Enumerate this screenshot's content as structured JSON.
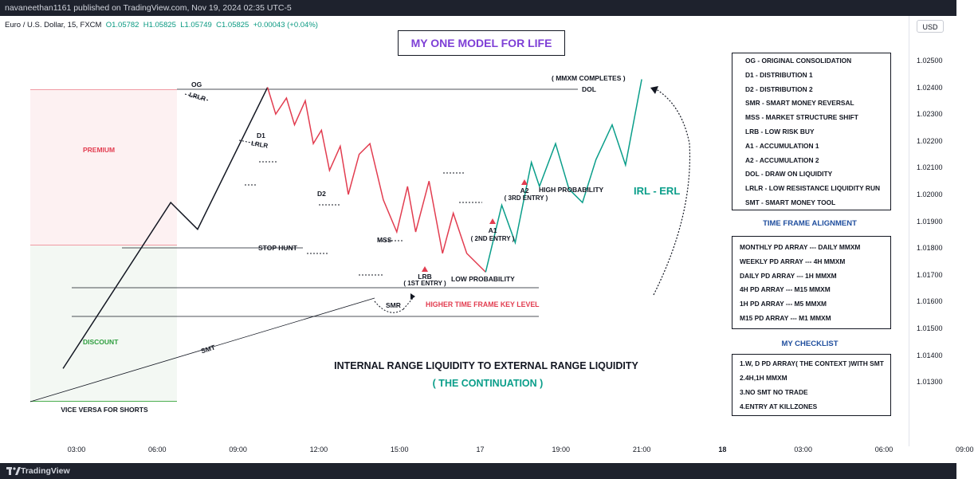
{
  "header": {
    "published": "navaneethan1161 published on TradingView.com, Nov 19, 2024 02:35 UTC-5",
    "symbol": "Euro / U.S. Dollar, 15, FXCM",
    "ohlc": {
      "o": "O1.05782",
      "h": "H1.05825",
      "l": "L1.05749",
      "c": "C1.05825",
      "change": "+0.00043 (+0.04%)"
    },
    "currency": "USD"
  },
  "footer": {
    "brand": "TradingView"
  },
  "title": "MY ONE MODEL FOR LIFE",
  "chart_data": {
    "type": "line",
    "yticks": [
      "1.02500",
      "1.02400",
      "1.02300",
      "1.02200",
      "1.02100",
      "1.02000",
      "1.01900",
      "1.01800",
      "1.01700",
      "1.01600",
      "1.01500",
      "1.01400",
      "1.01300"
    ],
    "xticks": [
      {
        "label": "03:00",
        "bold": false
      },
      {
        "label": "06:00",
        "bold": false
      },
      {
        "label": "09:00",
        "bold": false
      },
      {
        "label": "12:00",
        "bold": false
      },
      {
        "label": "15:00",
        "bold": false
      },
      {
        "label": "17",
        "bold": false
      },
      {
        "label": "19:00",
        "bold": false
      },
      {
        "label": "21:00",
        "bold": false
      },
      {
        "label": "18",
        "bold": true
      },
      {
        "label": "03:00",
        "bold": false
      },
      {
        "label": "06:00",
        "bold": false
      },
      {
        "label": "09:00",
        "bold": false
      }
    ],
    "ylim": [
      1.0125,
      1.0259
    ],
    "path_black": [
      [
        -0.5,
        1.0135
      ],
      [
        3.5,
        1.0197
      ],
      [
        4.5,
        1.0187
      ],
      [
        7.1,
        1.024
      ]
    ],
    "path_red": [
      [
        7.1,
        1.024
      ],
      [
        7.4,
        1.023
      ],
      [
        7.8,
        1.0236
      ],
      [
        8.1,
        1.0226
      ],
      [
        8.5,
        1.0235
      ],
      [
        8.8,
        1.0219
      ],
      [
        9.1,
        1.0224
      ],
      [
        9.4,
        1.0209
      ],
      [
        9.8,
        1.0218
      ],
      [
        10.1,
        1.02
      ],
      [
        10.5,
        1.0215
      ],
      [
        10.9,
        1.0219
      ],
      [
        11.4,
        1.0198
      ],
      [
        11.9,
        1.0186
      ],
      [
        12.3,
        1.0203
      ],
      [
        12.6,
        1.0186
      ],
      [
        13.1,
        1.0205
      ],
      [
        13.6,
        1.0178
      ],
      [
        14.0,
        1.0193
      ],
      [
        14.5,
        1.0178
      ],
      [
        15.2,
        1.0171
      ]
    ],
    "path_green": [
      [
        15.2,
        1.0171
      ],
      [
        15.8,
        1.0196
      ],
      [
        16.3,
        1.0182
      ],
      [
        16.9,
        1.0212
      ],
      [
        17.2,
        1.0203
      ],
      [
        17.8,
        1.0219
      ],
      [
        18.3,
        1.0202
      ],
      [
        18.8,
        1.0197
      ],
      [
        19.3,
        1.0213
      ],
      [
        19.9,
        1.0226
      ],
      [
        20.4,
        1.0211
      ],
      [
        21.0,
        1.0243
      ]
    ],
    "legend_box": [
      "OG - ORIGINAL CONSOLIDATION",
      "D1 - DISTRIBUTION 1",
      "D2 - DISTRIBUTION 2",
      "SMR - SMART MONEY REVERSAL",
      "MSS - MARKET STRUCTURE SHIFT",
      "LRB - LOW RISK BUY",
      "A1 - ACCUMULATION 1",
      "A2 - ACCUMULATION 2",
      "DOL - DRAW ON LIQUIDITY",
      "LRLR - LOW RESISTANCE LIQUIDITY RUN",
      "SMT - SMART MONEY TOOL"
    ],
    "tf_title": "TIME FRAME ALIGNMENT",
    "tf_items": [
      "MONTHLY PD ARRAY --- DAILY MMXM",
      "WEEKLY PD ARRAY --- 4H MMXM",
      "DAILY PD ARRAY --- 1H MMXM",
      "4H PD ARRAY --- M15 MMXM",
      "1H PD ARRAY --- M5 MMXM",
      "M15 PD ARRAY --- M1 MMXM"
    ],
    "checklist_title": "MY CHECKLIST",
    "checklist_items": [
      "1.W, D PD ARRAY( THE CONTEXT )WITH SMT",
      "2.4H,1H MMXM",
      "3.NO SMT NO TRADE",
      "4.ENTRY AT KILLZONES"
    ],
    "annotations": {
      "og": "OG",
      "lrlr": "LRLR",
      "d1": "D1",
      "d2": "D2",
      "mss": "MSS",
      "smr": "SMR",
      "lrb": "LRB",
      "lrb_entry": "( 1ST ENTRY )",
      "low_prob": "LOW PROBABILITY",
      "a1": "A1",
      "a1_entry": "( 2ND ENTRY )",
      "a2": "A2",
      "a2_entry": "( 3RD ENTRY )",
      "high_prob": "HIGH PROBABILITY",
      "mmxm": "( MMXM COMPLETES )",
      "dol": "DOL",
      "stop_hunt": "STOP HUNT",
      "htf": "HIGHER TIME FRAME KEY LEVEL",
      "smt": "SMT",
      "premium": "PREMIUM",
      "discount": "DISCOUNT",
      "vice_versa": "VICE VERSA FOR SHORTS",
      "irl_erl": "IRL - ERL",
      "main_text": "INTERNAL RANGE LIQUIDITY TO EXTERNAL RANGE LIQUIDITY",
      "sub_text": "( THE CONTINUATION )"
    },
    "colors": {
      "up": "#0a9e8a",
      "down": "#e23d50",
      "neutral": "#131722",
      "title": "#7e3fd6",
      "premium": "#e23d50",
      "discount": "#2e9e3e",
      "section": "#1f4e9e"
    }
  }
}
